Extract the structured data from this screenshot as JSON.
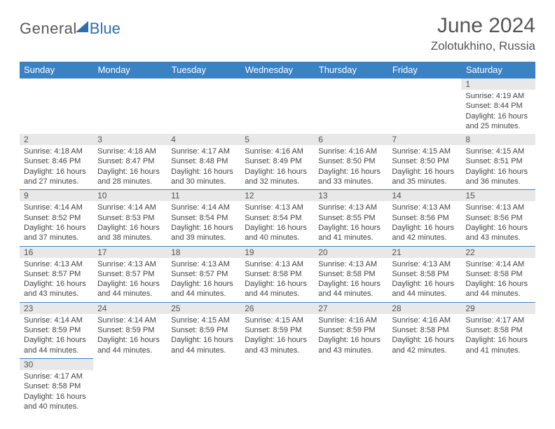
{
  "logo": {
    "main": "General",
    "accent": "Blue"
  },
  "title": "June 2024",
  "subtitle": "Zolotukhino, Russia",
  "colors": {
    "header_bg": "#3b82c4",
    "header_text": "#ffffff",
    "daynum_bg": "#e8e8e8",
    "border": "#3b82c4",
    "logo_accent": "#2f6fb0"
  },
  "day_headers": [
    "Sunday",
    "Monday",
    "Tuesday",
    "Wednesday",
    "Thursday",
    "Friday",
    "Saturday"
  ],
  "leading_blanks": 6,
  "days": [
    {
      "n": 1,
      "sunrise": "4:19 AM",
      "sunset": "8:44 PM",
      "daylight": "16 hours and 25 minutes."
    },
    {
      "n": 2,
      "sunrise": "4:18 AM",
      "sunset": "8:46 PM",
      "daylight": "16 hours and 27 minutes."
    },
    {
      "n": 3,
      "sunrise": "4:18 AM",
      "sunset": "8:47 PM",
      "daylight": "16 hours and 28 minutes."
    },
    {
      "n": 4,
      "sunrise": "4:17 AM",
      "sunset": "8:48 PM",
      "daylight": "16 hours and 30 minutes."
    },
    {
      "n": 5,
      "sunrise": "4:16 AM",
      "sunset": "8:49 PM",
      "daylight": "16 hours and 32 minutes."
    },
    {
      "n": 6,
      "sunrise": "4:16 AM",
      "sunset": "8:50 PM",
      "daylight": "16 hours and 33 minutes."
    },
    {
      "n": 7,
      "sunrise": "4:15 AM",
      "sunset": "8:50 PM",
      "daylight": "16 hours and 35 minutes."
    },
    {
      "n": 8,
      "sunrise": "4:15 AM",
      "sunset": "8:51 PM",
      "daylight": "16 hours and 36 minutes."
    },
    {
      "n": 9,
      "sunrise": "4:14 AM",
      "sunset": "8:52 PM",
      "daylight": "16 hours and 37 minutes."
    },
    {
      "n": 10,
      "sunrise": "4:14 AM",
      "sunset": "8:53 PM",
      "daylight": "16 hours and 38 minutes."
    },
    {
      "n": 11,
      "sunrise": "4:14 AM",
      "sunset": "8:54 PM",
      "daylight": "16 hours and 39 minutes."
    },
    {
      "n": 12,
      "sunrise": "4:13 AM",
      "sunset": "8:54 PM",
      "daylight": "16 hours and 40 minutes."
    },
    {
      "n": 13,
      "sunrise": "4:13 AM",
      "sunset": "8:55 PM",
      "daylight": "16 hours and 41 minutes."
    },
    {
      "n": 14,
      "sunrise": "4:13 AM",
      "sunset": "8:56 PM",
      "daylight": "16 hours and 42 minutes."
    },
    {
      "n": 15,
      "sunrise": "4:13 AM",
      "sunset": "8:56 PM",
      "daylight": "16 hours and 43 minutes."
    },
    {
      "n": 16,
      "sunrise": "4:13 AM",
      "sunset": "8:57 PM",
      "daylight": "16 hours and 43 minutes."
    },
    {
      "n": 17,
      "sunrise": "4:13 AM",
      "sunset": "8:57 PM",
      "daylight": "16 hours and 44 minutes."
    },
    {
      "n": 18,
      "sunrise": "4:13 AM",
      "sunset": "8:57 PM",
      "daylight": "16 hours and 44 minutes."
    },
    {
      "n": 19,
      "sunrise": "4:13 AM",
      "sunset": "8:58 PM",
      "daylight": "16 hours and 44 minutes."
    },
    {
      "n": 20,
      "sunrise": "4:13 AM",
      "sunset": "8:58 PM",
      "daylight": "16 hours and 44 minutes."
    },
    {
      "n": 21,
      "sunrise": "4:13 AM",
      "sunset": "8:58 PM",
      "daylight": "16 hours and 44 minutes."
    },
    {
      "n": 22,
      "sunrise": "4:14 AM",
      "sunset": "8:58 PM",
      "daylight": "16 hours and 44 minutes."
    },
    {
      "n": 23,
      "sunrise": "4:14 AM",
      "sunset": "8:59 PM",
      "daylight": "16 hours and 44 minutes."
    },
    {
      "n": 24,
      "sunrise": "4:14 AM",
      "sunset": "8:59 PM",
      "daylight": "16 hours and 44 minutes."
    },
    {
      "n": 25,
      "sunrise": "4:15 AM",
      "sunset": "8:59 PM",
      "daylight": "16 hours and 44 minutes."
    },
    {
      "n": 26,
      "sunrise": "4:15 AM",
      "sunset": "8:59 PM",
      "daylight": "16 hours and 43 minutes."
    },
    {
      "n": 27,
      "sunrise": "4:16 AM",
      "sunset": "8:59 PM",
      "daylight": "16 hours and 43 minutes."
    },
    {
      "n": 28,
      "sunrise": "4:16 AM",
      "sunset": "8:58 PM",
      "daylight": "16 hours and 42 minutes."
    },
    {
      "n": 29,
      "sunrise": "4:17 AM",
      "sunset": "8:58 PM",
      "daylight": "16 hours and 41 minutes."
    },
    {
      "n": 30,
      "sunrise": "4:17 AM",
      "sunset": "8:58 PM",
      "daylight": "16 hours and 40 minutes."
    }
  ],
  "labels": {
    "sunrise": "Sunrise:",
    "sunset": "Sunset:",
    "daylight": "Daylight:"
  }
}
